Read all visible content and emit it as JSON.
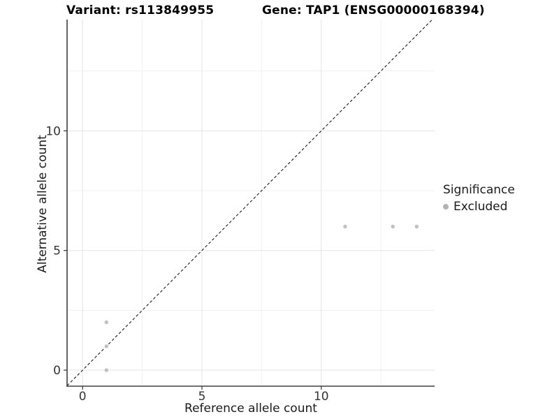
{
  "chart_data": {
    "type": "scatter",
    "titles": {
      "left": "Variant: rs113849955",
      "right": "Gene: TAP1 (ENSG00000168394)"
    },
    "xlabel": "Reference allele count",
    "ylabel": "Alternative allele count",
    "xlim": [
      -0.65,
      14.75
    ],
    "ylim": [
      -0.67,
      14.65
    ],
    "x_ticks": {
      "major": [
        0,
        5,
        10
      ],
      "minor": [
        2.5,
        7.5,
        12.5
      ]
    },
    "y_ticks": {
      "major": [
        0,
        5,
        10
      ],
      "minor": [
        2.5,
        7.5,
        12.5
      ]
    },
    "grid": "major and minor gridlines, white panel background",
    "identity_line": {
      "style": "dashed",
      "equation": "y = x",
      "color": "#1a1a1a"
    },
    "series": [
      {
        "name": "Excluded",
        "color": "#c0c0c0",
        "points": [
          [
            1,
            0
          ],
          [
            1,
            1
          ],
          [
            1,
            2
          ],
          [
            11,
            6
          ],
          [
            13,
            6
          ],
          [
            14,
            6
          ]
        ]
      }
    ],
    "legend": {
      "title": "Significance",
      "position": "right",
      "items": [
        {
          "label": "Excluded",
          "color": "#b3b3b3"
        }
      ]
    }
  },
  "colors": {
    "background": "#ffffff",
    "grid_major": "#e3e3e3",
    "grid_minor": "#f0f0f0",
    "axis_line": "#404040",
    "tick_mark": "#333333",
    "tick_text": "#333333",
    "point_fill": "#c0c0c0"
  },
  "layout_labels": {
    "point_icon": "gray-dot-icon"
  }
}
